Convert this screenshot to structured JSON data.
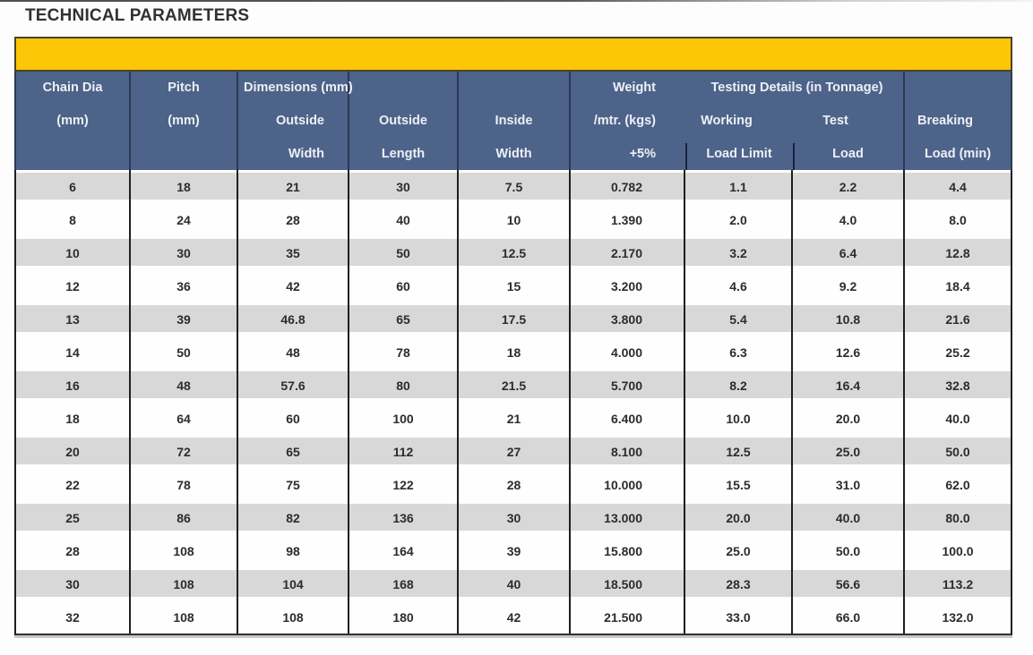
{
  "page": {
    "title": "TECHNICAL PARAMETERS"
  },
  "colors": {
    "banner_yellow": "#fdc708",
    "banner_border": "#4b4328",
    "header_blue": "#4e6389",
    "header_divider": "#2b3a54",
    "header_text": "#ecf0f6",
    "stripe_gray": "#d8d8d8",
    "grid_line": "#1f1f1f",
    "data_text": "#2c2c2c"
  },
  "table": {
    "group_headers": {
      "dimensions": "Dimensions (mm)",
      "testing": "Testing Details (in Tonnage)"
    },
    "columns": [
      {
        "lines": [
          "Chain Dia",
          "(mm)",
          ""
        ]
      },
      {
        "lines": [
          "Pitch",
          "(mm)",
          ""
        ]
      },
      {
        "lines": [
          "",
          "Outside",
          "Width"
        ]
      },
      {
        "lines": [
          "",
          "Outside",
          "Length"
        ]
      },
      {
        "lines": [
          "",
          "Inside",
          "Width"
        ]
      },
      {
        "lines": [
          "Weight",
          "/mtr. (kgs)",
          "+5%"
        ]
      },
      {
        "lines": [
          "",
          "Working",
          "Load Limit"
        ]
      },
      {
        "lines": [
          "",
          "Test",
          "Load"
        ]
      },
      {
        "lines": [
          "",
          "Breaking",
          "Load (min)"
        ]
      }
    ],
    "rows": [
      [
        "6",
        "18",
        "21",
        "30",
        "7.5",
        "0.782",
        "1.1",
        "2.2",
        "4.4"
      ],
      [
        "8",
        "24",
        "28",
        "40",
        "10",
        "1.390",
        "2.0",
        "4.0",
        "8.0"
      ],
      [
        "10",
        "30",
        "35",
        "50",
        "12.5",
        "2.170",
        "3.2",
        "6.4",
        "12.8"
      ],
      [
        "12",
        "36",
        "42",
        "60",
        "15",
        "3.200",
        "4.6",
        "9.2",
        "18.4"
      ],
      [
        "13",
        "39",
        "46.8",
        "65",
        "17.5",
        "3.800",
        "5.4",
        "10.8",
        "21.6"
      ],
      [
        "14",
        "50",
        "48",
        "78",
        "18",
        "4.000",
        "6.3",
        "12.6",
        "25.2"
      ],
      [
        "16",
        "48",
        "57.6",
        "80",
        "21.5",
        "5.700",
        "8.2",
        "16.4",
        "32.8"
      ],
      [
        "18",
        "64",
        "60",
        "100",
        "21",
        "6.400",
        "10.0",
        "20.0",
        "40.0"
      ],
      [
        "20",
        "72",
        "65",
        "112",
        "27",
        "8.100",
        "12.5",
        "25.0",
        "50.0"
      ],
      [
        "22",
        "78",
        "75",
        "122",
        "28",
        "10.000",
        "15.5",
        "31.0",
        "62.0"
      ],
      [
        "25",
        "86",
        "82",
        "136",
        "30",
        "13.000",
        "20.0",
        "40.0",
        "80.0"
      ],
      [
        "28",
        "108",
        "98",
        "164",
        "39",
        "15.800",
        "25.0",
        "50.0",
        "100.0"
      ],
      [
        "30",
        "108",
        "104",
        "168",
        "40",
        "18.500",
        "28.3",
        "56.6",
        "113.2"
      ],
      [
        "32",
        "108",
        "108",
        "180",
        "42",
        "21.500",
        "33.0",
        "66.0",
        "132.0"
      ]
    ]
  }
}
